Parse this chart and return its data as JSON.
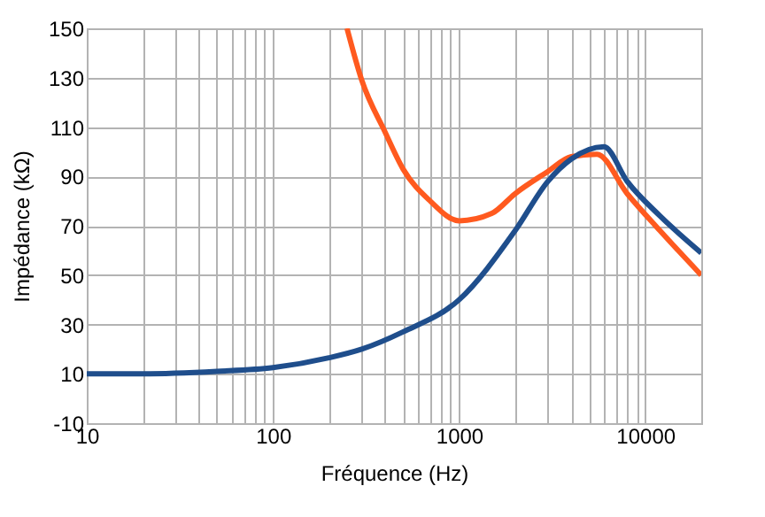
{
  "chart_data": {
    "type": "line",
    "xlabel": "Fréquence (Hz)",
    "ylabel": "Impédance (kΩ)",
    "log": "x",
    "xlim": [
      10,
      20000
    ],
    "ylim": [
      -10,
      150
    ],
    "xticks": [
      10,
      {
        "value": 20,
        "label": null
      },
      {
        "value": 30,
        "label": null
      },
      {
        "value": 40,
        "label": null
      },
      {
        "value": 50,
        "label": null
      },
      {
        "value": 60,
        "label": null
      },
      {
        "value": 70,
        "label": null
      },
      {
        "value": 80,
        "label": null
      },
      {
        "value": 90,
        "label": null
      },
      100,
      {
        "value": 200,
        "label": null
      },
      {
        "value": 300,
        "label": null
      },
      {
        "value": 400,
        "label": null
      },
      {
        "value": 500,
        "label": null
      },
      {
        "value": 600,
        "label": null
      },
      {
        "value": 700,
        "label": null
      },
      {
        "value": 800,
        "label": null
      },
      {
        "value": 900,
        "label": null
      },
      1000,
      {
        "value": 2000,
        "label": null
      },
      {
        "value": 3000,
        "label": null
      },
      {
        "value": 4000,
        "label": null
      },
      {
        "value": 5000,
        "label": null
      },
      {
        "value": 6000,
        "label": null
      },
      {
        "value": 7000,
        "label": null
      },
      {
        "value": 8000,
        "label": null
      },
      {
        "value": 9000,
        "label": null
      },
      10000,
      {
        "value": 20000,
        "label": null
      }
    ],
    "yticks": [
      -10,
      10,
      30,
      50,
      70,
      90,
      110,
      130,
      150
    ],
    "grid": true,
    "legend": false,
    "marker": "none",
    "line_style": "solid",
    "series": [
      {
        "color": "#ff5a1f",
        "x": [
          250,
          300,
          400,
          500,
          700,
          1000,
          1500,
          2000,
          3000,
          4000,
          5500,
          8000,
          12000,
          20000
        ],
        "values": [
          150,
          129,
          108,
          93,
          80,
          72,
          75,
          83,
          92,
          98,
          99,
          83,
          68,
          50
        ]
      },
      {
        "color": "#1f4e8c",
        "x": [
          10,
          20,
          50,
          100,
          200,
          300,
          500,
          1000,
          2000,
          3000,
          4000,
          6000,
          8000,
          12000,
          20000
        ],
        "values": [
          10,
          10,
          11,
          12.5,
          16.5,
          20,
          27,
          40,
          68,
          88,
          97,
          102,
          88,
          74,
          59
        ]
      }
    ]
  }
}
